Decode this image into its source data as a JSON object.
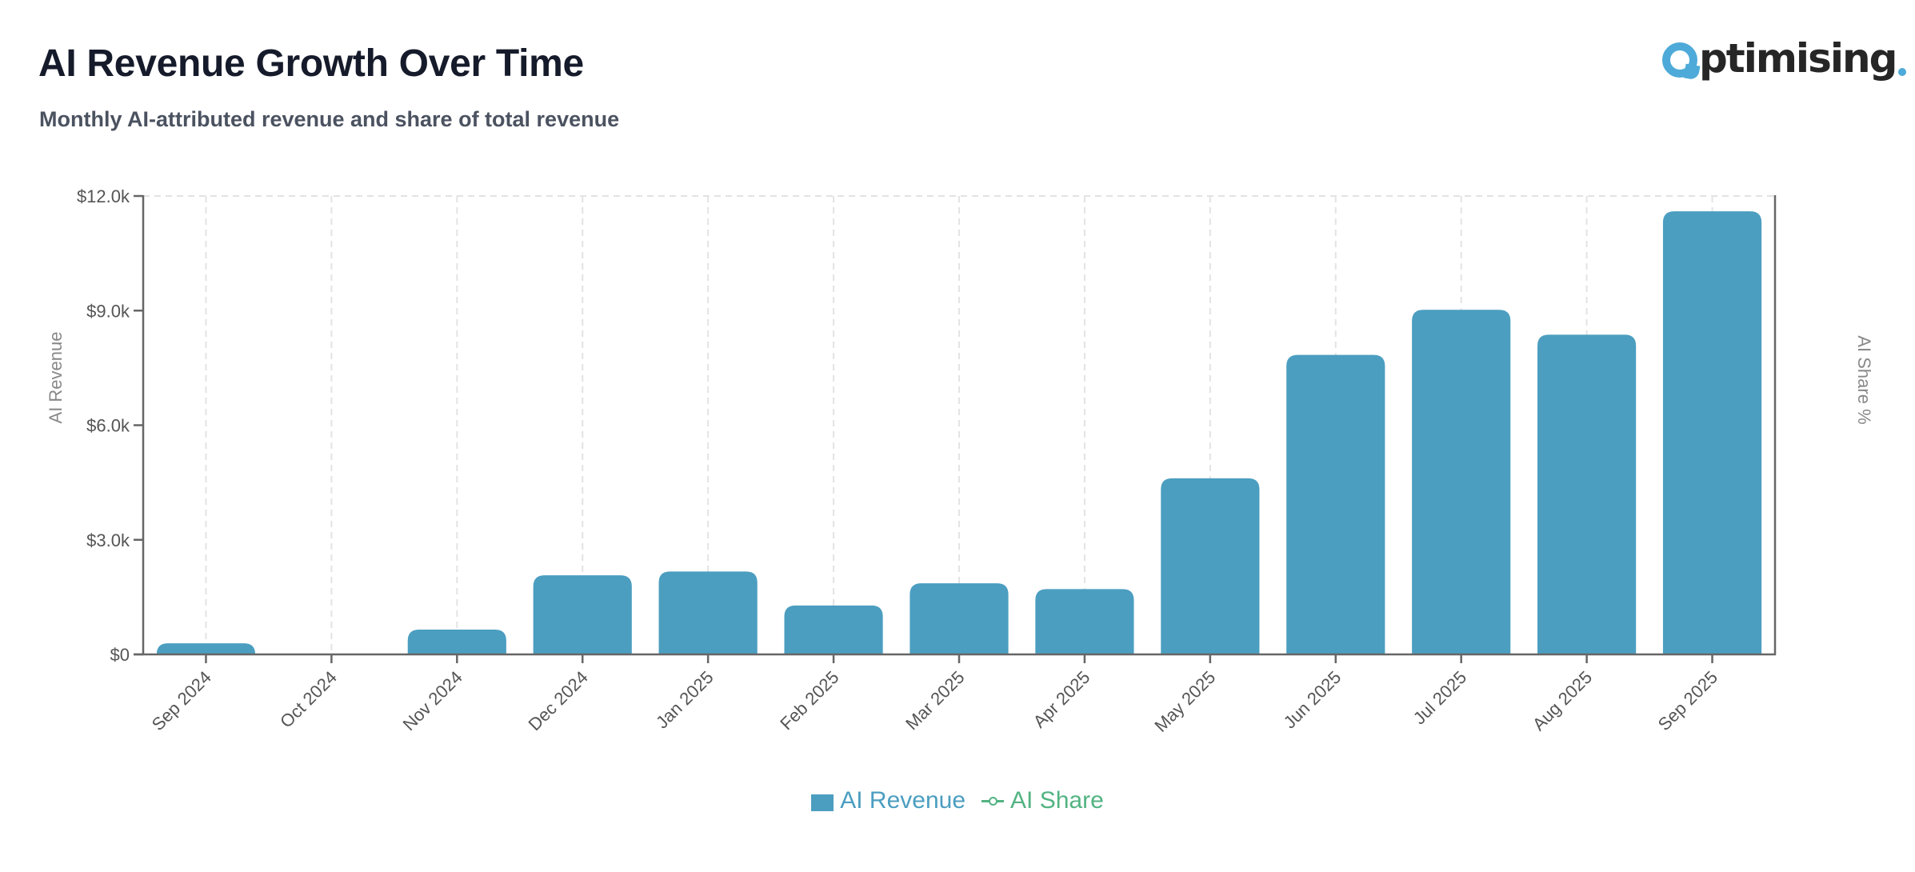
{
  "header": {
    "title": "AI Revenue Growth Over Time",
    "subtitle": "Monthly AI-attributed revenue and share of total revenue"
  },
  "logo": {
    "text": "ptimising",
    "full_text": "Optimising.",
    "icon": "optimising-logo-icon"
  },
  "colors": {
    "bar": "#4b9ec0",
    "share_line": "#52b382",
    "axis": "#666666",
    "grid": "#e3e3e3",
    "tick_text": "#555555",
    "axis_title": "#888888"
  },
  "chart_data": {
    "type": "bar",
    "title": "AI Revenue Growth Over Time",
    "subtitle": "Monthly AI-attributed revenue and share of total revenue",
    "xlabel": "",
    "ylabel": "AI Revenue",
    "y2label": "AI Share %",
    "ylim": [
      0,
      12000
    ],
    "yticks": [
      0,
      3000,
      6000,
      9000,
      12000
    ],
    "ytick_labels": [
      "$0",
      "$3.0k",
      "$6.0k",
      "$9.0k",
      "$12.0k"
    ],
    "categories": [
      "Sep 2024",
      "Oct 2024",
      "Nov 2024",
      "Dec 2024",
      "Jan 2025",
      "Feb 2025",
      "Mar 2025",
      "Apr 2025",
      "May 2025",
      "Jun 2025",
      "Jul 2025",
      "Aug 2025",
      "Sep 2025"
    ],
    "series": [
      {
        "name": "AI Revenue",
        "type": "bar",
        "color": "#4b9ec0",
        "values": [
          290,
          20,
          650,
          2070,
          2170,
          1280,
          1860,
          1710,
          4610,
          7840,
          9020,
          8370,
          11600
        ]
      },
      {
        "name": "AI Share",
        "type": "line",
        "color": "#52b382",
        "values": []
      }
    ],
    "grid": {
      "vertical": true,
      "horizontal": false,
      "style": "dashed"
    },
    "legend_position": "bottom-center",
    "xtick_rotation": -45
  },
  "legend": {
    "items": [
      {
        "label": "AI Revenue",
        "icon": "bar-swatch-icon"
      },
      {
        "label": "AI Share",
        "icon": "line-marker-icon"
      }
    ]
  },
  "axes": {
    "left_title": "AI Revenue",
    "right_title": "AI Share %"
  }
}
